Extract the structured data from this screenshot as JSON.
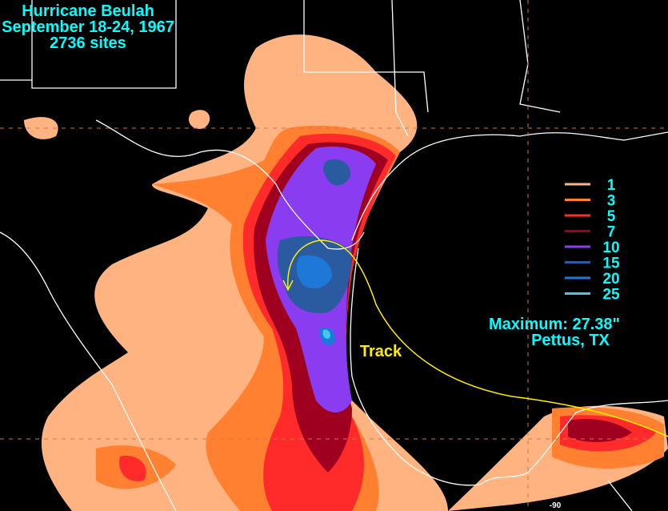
{
  "header": {
    "lines": [
      "Hurricane Beulah",
      "September 18-24, 1967",
      "2736 sites"
    ]
  },
  "legend": {
    "items": [
      {
        "label": "1",
        "color": "#ffb380"
      },
      {
        "label": "3",
        "color": "#ff8030"
      },
      {
        "label": "5",
        "color": "#ff2a2a"
      },
      {
        "label": "7",
        "color": "#a00020"
      },
      {
        "label": "10",
        "color": "#8a3cf0"
      },
      {
        "label": "15",
        "color": "#2a5aa0"
      },
      {
        "label": "20",
        "color": "#1e78d8"
      },
      {
        "label": "25",
        "color": "#40c8f0"
      }
    ]
  },
  "maximum": {
    "lines": [
      "Maximum:  27.38\"",
      "Pettus, TX"
    ]
  },
  "track_label": "Track",
  "axis_label": "-90"
}
